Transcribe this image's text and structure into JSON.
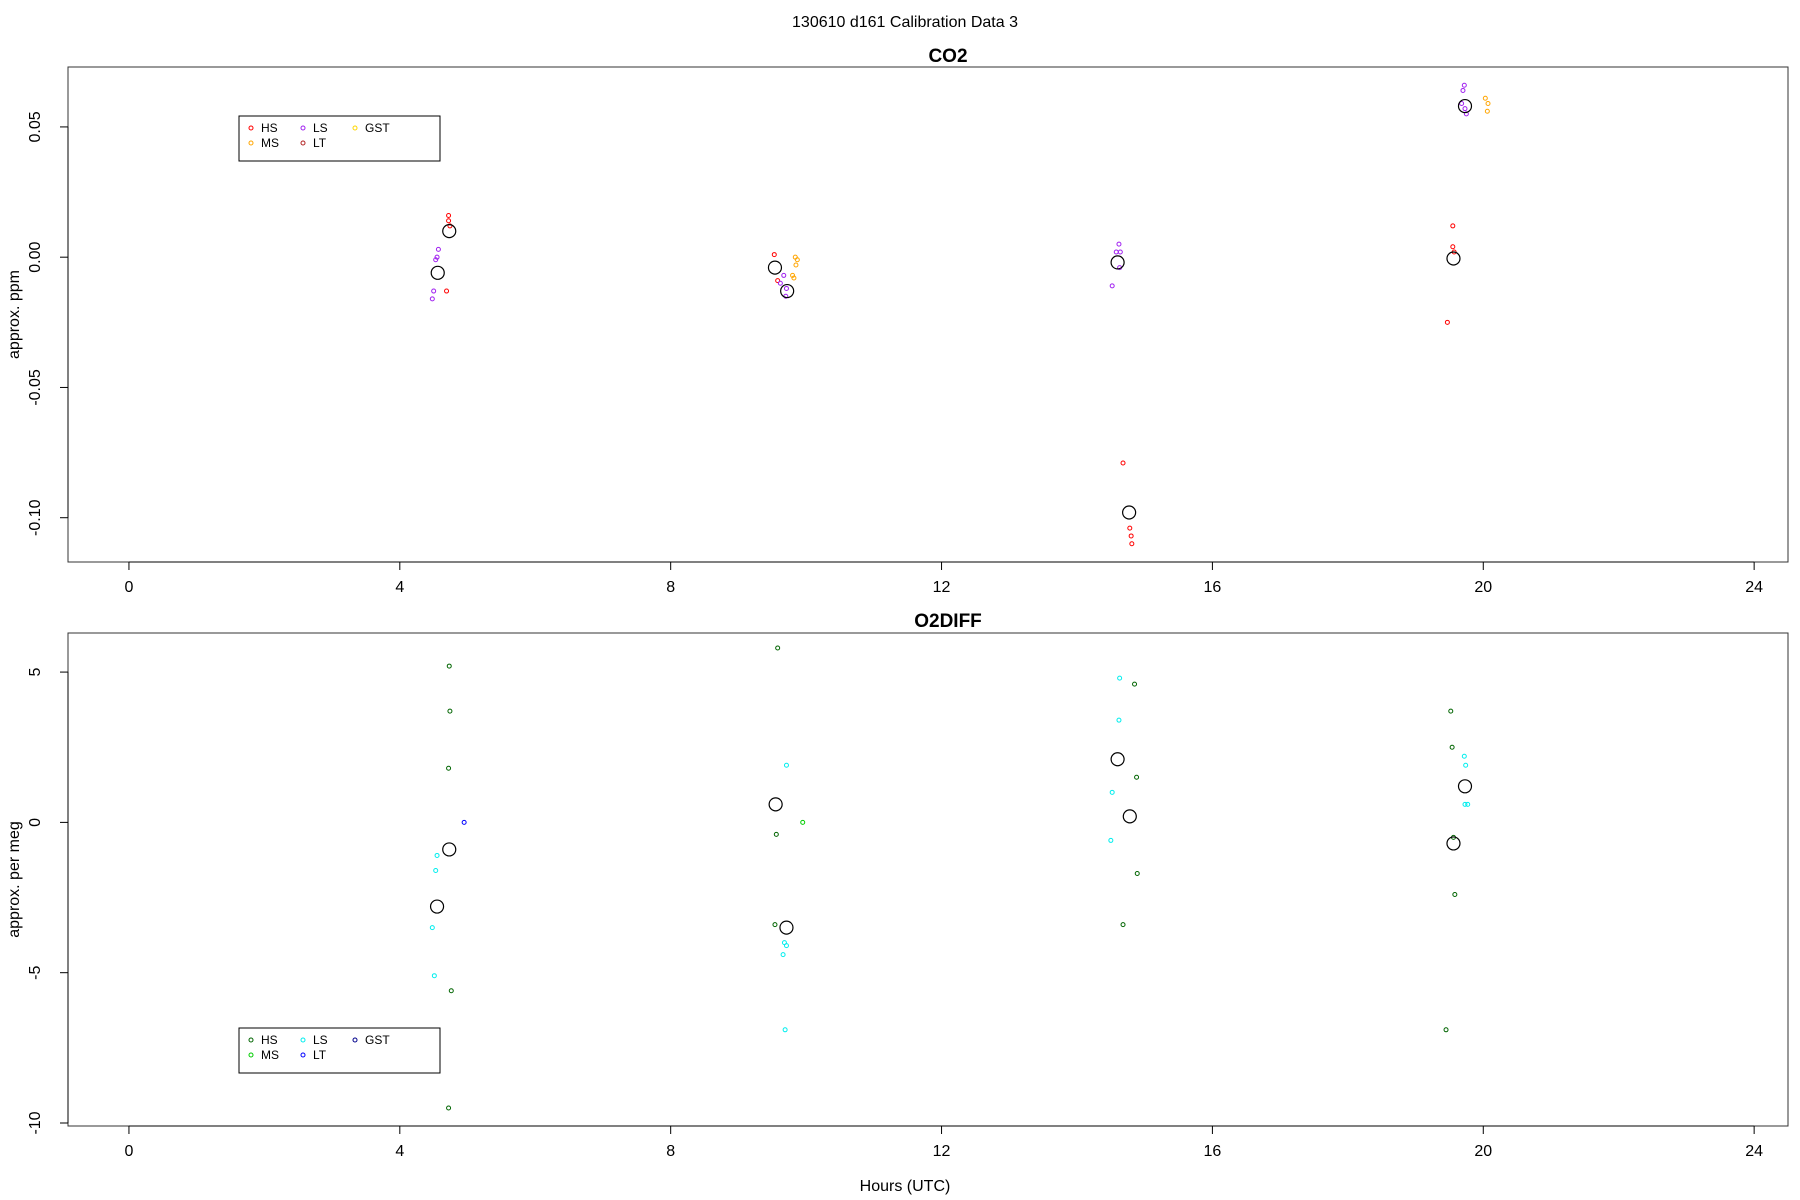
{
  "suptitle": "130610   d161   Calibration Data 3",
  "chart_data": [
    {
      "type": "scatter",
      "title": "CO2",
      "xlabel": "",
      "ylabel": "approx. ppm",
      "xlim": [
        -0.9,
        24.5
      ],
      "ylim": [
        -0.117,
        0.073
      ],
      "x_ticks": [
        0,
        4,
        8,
        12,
        16,
        20,
        24
      ],
      "x_tick_labels": [
        "0",
        "4",
        "8",
        "12",
        "16",
        "20",
        "24"
      ],
      "y_ticks": [
        -0.1,
        -0.05,
        0,
        0.05
      ],
      "y_tick_labels": [
        "-0.10",
        "-0.05",
        "0.00",
        "0.05"
      ],
      "legend": {
        "placement": "top-left",
        "entries": [
          {
            "label": "HS",
            "color": "#ff0000"
          },
          {
            "label": "MS",
            "color": "#ffa500"
          },
          {
            "label": "LS",
            "color": "#a020f0"
          },
          {
            "label": "LT",
            "color": "#b22222"
          },
          {
            "label": "GST",
            "color": "#ffd700"
          }
        ]
      },
      "series": [
        {
          "name": "HS",
          "color": "#ff0000",
          "points": [
            [
              4.72,
              0.016
            ],
            [
              4.72,
              0.014
            ],
            [
              4.74,
              0.012
            ],
            [
              4.69,
              -0.013
            ],
            [
              9.53,
              0.001
            ],
            [
              9.58,
              -0.009
            ],
            [
              14.68,
              -0.079
            ],
            [
              14.78,
              -0.104
            ],
            [
              14.8,
              -0.107
            ],
            [
              14.81,
              -0.11
            ],
            [
              19.55,
              0.012
            ],
            [
              19.55,
              0.004
            ],
            [
              19.57,
              0.002
            ],
            [
              19.47,
              -0.025
            ]
          ]
        },
        {
          "name": "MS",
          "color": "#ffa500",
          "points": [
            [
              9.84,
              0.0
            ],
            [
              9.87,
              -0.001
            ],
            [
              9.85,
              -0.003
            ],
            [
              9.8,
              -0.007
            ],
            [
              9.82,
              -0.008
            ],
            [
              20.03,
              0.061
            ],
            [
              20.07,
              0.059
            ],
            [
              20.06,
              0.056
            ]
          ]
        },
        {
          "name": "LS",
          "color": "#a020f0",
          "points": [
            [
              4.57,
              0.003
            ],
            [
              4.55,
              0.0
            ],
            [
              4.53,
              -0.001
            ],
            [
              4.5,
              -0.013
            ],
            [
              4.48,
              -0.016
            ],
            [
              9.67,
              -0.007
            ],
            [
              9.62,
              -0.01
            ],
            [
              9.71,
              -0.012
            ],
            [
              9.7,
              -0.015
            ],
            [
              14.62,
              0.005
            ],
            [
              14.58,
              0.002
            ],
            [
              14.64,
              0.002
            ],
            [
              14.63,
              -0.004
            ],
            [
              14.52,
              -0.011
            ],
            [
              19.72,
              0.066
            ],
            [
              19.7,
              0.064
            ],
            [
              19.68,
              0.059
            ],
            [
              19.73,
              0.057
            ],
            [
              19.75,
              0.055
            ]
          ]
        },
        {
          "name": "LT",
          "color": "#b22222",
          "points": []
        },
        {
          "name": "GST",
          "color": "#ffd700",
          "points": []
        },
        {
          "name": "",
          "color": "#000000",
          "marker": "mean",
          "points": [
            [
              4.56,
              -0.006
            ],
            [
              4.73,
              0.01
            ],
            [
              9.54,
              -0.004
            ],
            [
              9.72,
              -0.013
            ],
            [
              14.6,
              -0.002
            ],
            [
              14.77,
              -0.098
            ],
            [
              19.56,
              -0.0005
            ],
            [
              19.73,
              0.058
            ]
          ]
        }
      ]
    },
    {
      "type": "scatter",
      "title": "O2DIFF",
      "xlabel": "Hours (UTC)",
      "ylabel": "approx. per meg",
      "xlim": [
        -0.9,
        24.5
      ],
      "ylim": [
        -10.1,
        6.3
      ],
      "x_ticks": [
        0,
        4,
        8,
        12,
        16,
        20,
        24
      ],
      "x_tick_labels": [
        "0",
        "4",
        "8",
        "12",
        "16",
        "20",
        "24"
      ],
      "y_ticks": [
        -10,
        -5,
        0,
        5
      ],
      "y_tick_labels": [
        "-10",
        "-5",
        "0",
        "5"
      ],
      "legend": {
        "placement": "bottom-left",
        "entries": [
          {
            "label": "HS",
            "color": "#006400"
          },
          {
            "label": "MS",
            "color": "#00cd00"
          },
          {
            "label": "LS",
            "color": "#00eeee"
          },
          {
            "label": "LT",
            "color": "#0000ff"
          },
          {
            "label": "GST",
            "color": "#00008b"
          }
        ]
      },
      "series": [
        {
          "name": "HS",
          "color": "#006400",
          "points": [
            [
              4.73,
              5.2
            ],
            [
              4.74,
              3.7
            ],
            [
              4.72,
              1.8
            ],
            [
              4.76,
              -5.6
            ],
            [
              4.72,
              -9.5
            ],
            [
              9.58,
              5.8
            ],
            [
              9.56,
              -0.4
            ],
            [
              9.54,
              -3.4
            ],
            [
              14.85,
              4.6
            ],
            [
              14.88,
              1.5
            ],
            [
              14.89,
              -1.7
            ],
            [
              14.68,
              -3.4
            ],
            [
              19.52,
              3.7
            ],
            [
              19.54,
              2.5
            ],
            [
              19.56,
              -0.5
            ],
            [
              19.58,
              -2.4
            ],
            [
              19.45,
              -6.9
            ]
          ]
        },
        {
          "name": "MS",
          "color": "#00cd00",
          "points": [
            [
              9.95,
              0.0
            ]
          ]
        },
        {
          "name": "LS",
          "color": "#00eeee",
          "points": [
            [
              4.55,
              -1.1
            ],
            [
              4.53,
              -1.6
            ],
            [
              4.48,
              -3.5
            ],
            [
              4.51,
              -5.1
            ],
            [
              9.71,
              1.9
            ],
            [
              9.68,
              -4.0
            ],
            [
              9.71,
              -4.1
            ],
            [
              9.66,
              -4.4
            ],
            [
              9.69,
              -6.9
            ],
            [
              14.63,
              4.8
            ],
            [
              14.62,
              3.4
            ],
            [
              14.52,
              1.0
            ],
            [
              14.5,
              -0.6
            ],
            [
              19.72,
              2.2
            ],
            [
              19.74,
              1.9
            ],
            [
              19.73,
              0.6
            ],
            [
              19.77,
              0.6
            ]
          ]
        },
        {
          "name": "LT",
          "color": "#0000ff",
          "points": [
            [
              4.95,
              0.0
            ]
          ]
        },
        {
          "name": "GST",
          "color": "#00008b",
          "points": []
        },
        {
          "name": "",
          "color": "#000000",
          "marker": "mean",
          "points": [
            [
              4.55,
              -2.8
            ],
            [
              4.73,
              -0.9
            ],
            [
              9.55,
              0.6
            ],
            [
              9.71,
              -3.5
            ],
            [
              14.6,
              2.1
            ],
            [
              14.78,
              0.2
            ],
            [
              19.56,
              -0.7
            ],
            [
              19.73,
              1.2
            ]
          ]
        }
      ]
    }
  ]
}
